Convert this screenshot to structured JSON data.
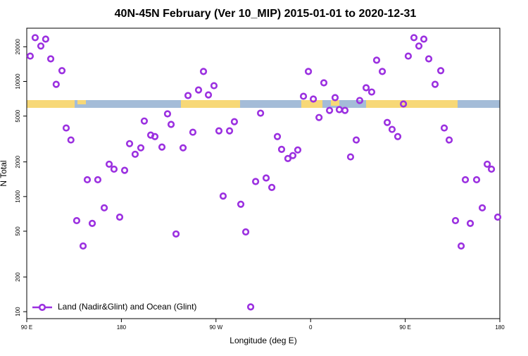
{
  "chart_data": {
    "type": "scatter",
    "title": "40N-45N February (Ver 10_MIP)   2015-01-01 to 2020-12-31",
    "x_label": "Longitude (deg E)",
    "y_label": "N Total",
    "log_y": true,
    "legend": "bottom-left",
    "xlim": [
      90,
      540
    ],
    "xticks": [
      {
        "value": 90,
        "label": "90 E"
      },
      180,
      {
        "value": 270,
        "label": "90 W"
      },
      {
        "value": 360,
        "label": "0"
      },
      {
        "value": 450,
        "label": "90 E"
      },
      {
        "value": 540,
        "label": "180"
      }
    ],
    "ylim": [
      87,
      29000
    ],
    "yticks": [
      100,
      200,
      500,
      1000,
      2000,
      5000,
      10000,
      20000
    ],
    "series": [
      {
        "name": "Land (Nadir&Glint) and Ocean (Glint)",
        "color": "#9b30e0",
        "x": [
          93.3,
          98,
          103.4,
          108,
          112.8,
          118,
          123.5,
          127.5,
          132,
          137.5,
          143.6,
          147.6,
          152.3,
          157.6,
          163.7,
          168.4,
          173,
          178.4,
          183.1,
          187.8,
          193.1,
          198.5,
          201.8,
          207.9,
          211.9,
          218.6,
          223.9,
          227.3,
          232,
          238.7,
          243.4,
          248,
          253.4,
          258.1,
          262.8,
          268.1,
          272.8,
          276.8,
          282.9,
          287.5,
          293.6,
          298.3,
          303,
          307.7,
          312.4,
          317.7,
          323.1,
          328.4,
          332.4,
          338.4,
          343.1,
          347.8,
          353.2,
          357.9,
          362.6,
          368,
          372.6,
          378,
          383.3,
          387.3,
          392.7,
          398,
          403.4,
          406.7,
          412.8,
          418.1,
          422.8,
          428.2,
          432.9,
          437.5,
          442.9,
          448.3,
          452.9,
          458.3,
          463,
          467.7,
          472.4,
          478.4,
          483.8,
          487.1,
          491.8,
          497.8,
          503.2,
          507.2,
          511.9,
          517.9,
          523.3,
          528,
          532,
          538
        ],
        "values": [
          16600,
          24000,
          20300,
          23300,
          15700,
          9440,
          12400,
          3940,
          3100,
          618,
          372,
          1400,
          585,
          1400,
          798,
          1910,
          1730,
          663,
          1690,
          2880,
          2330,
          2650,
          4530,
          3420,
          3320,
          2690,
          5230,
          4230,
          473,
          2650,
          7540,
          3620,
          8430,
          12200,
          7640,
          9180,
          3720,
          1010,
          3720,
          4470,
          857,
          493,
          110,
          1350,
          5300,
          1450,
          1200,
          3320,
          2570,
          2140,
          2270,
          2540,
          7430,
          12200,
          7030,
          4860,
          9720,
          5600,
          7230,
          5690,
          5600,
          2210,
          3100,
          6830,
          8810,
          8090,
          15300,
          12200,
          4400,
          3830,
          3320,
          6370,
          16600,
          24000,
          20300,
          23300,
          15700,
          9440,
          12400,
          3940,
          3100,
          618,
          372,
          1400,
          585,
          1400,
          798,
          1910,
          1730,
          663
        ]
      }
    ]
  }
}
